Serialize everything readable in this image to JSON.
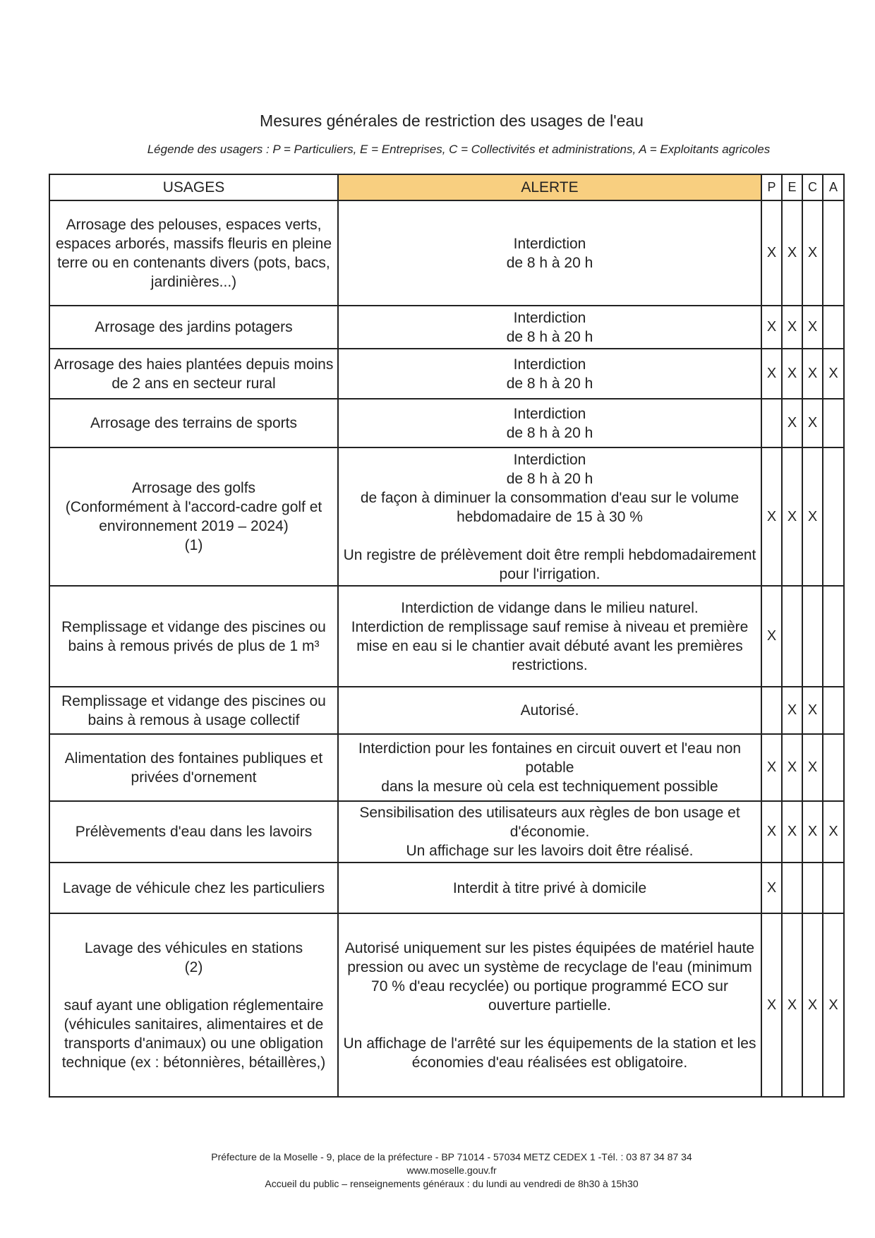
{
  "title": "Mesures générales de restriction des usages de l'eau",
  "legend": "Légende des usagers : P = Particuliers, E = Entreprises, C = Collectivités et administrations, A = Exploitants agricoles",
  "table": {
    "headers": [
      "USAGES",
      "ALERTE",
      "P",
      "E",
      "C",
      "A"
    ],
    "rows": [
      {
        "usage": "Arrosage des pelouses, espaces verts, espaces arborés, massifs fleuris en pleine terre ou en contenants divers (pots, bacs, jardinières...)",
        "alerte": "Interdiction\nde 8 h à 20 h",
        "marks": [
          "X",
          "X",
          "X",
          ""
        ],
        "h": 0
      },
      {
        "usage": "Arrosage des jardins potagers",
        "alerte": "Interdiction\nde 8 h à 20 h",
        "marks": [
          "X",
          "X",
          "X",
          ""
        ]
      },
      {
        "usage": "Arrosage des haies plantées depuis moins de 2 ans en secteur rural",
        "alerte": "Interdiction\nde 8 h à 20 h",
        "marks": [
          "X",
          "X",
          "X",
          "X"
        ]
      },
      {
        "usage": "Arrosage des terrains de sports",
        "alerte": "Interdiction\nde 8 h à 20 h",
        "marks": [
          "",
          "X",
          "X",
          ""
        ]
      },
      {
        "usage": "Arrosage des golfs\n(Conformément à l'accord-cadre golf et environnement 2019 – 2024)\n(1)",
        "alerte": "Interdiction\nde 8 h à 20 h\nde façon à diminuer la consommation d'eau sur le volume hebdomadaire de 15 à 30 %\n\nUn registre de prélèvement doit être rempli hebdomadairement pour l'irrigation.",
        "marks": [
          "X",
          "X",
          "X",
          ""
        ]
      },
      {
        "usage": "Remplissage et vidange des piscines ou bains à remous privés de plus de 1 m³",
        "alerte": "Interdiction de vidange dans le milieu naturel.\nInterdiction de remplissage sauf remise à niveau et première mise en eau si le chantier avait débuté avant les premières restrictions.",
        "marks": [
          "X",
          "",
          "",
          ""
        ]
      },
      {
        "usage": "Remplissage et vidange des piscines ou bains à remous à usage collectif",
        "alerte": "Autorisé.",
        "marks": [
          "",
          "X",
          "X",
          ""
        ]
      },
      {
        "usage": "Alimentation des fontaines publiques et privées d'ornement",
        "alerte": "Interdiction pour les fontaines en circuit ouvert et l'eau non potable\ndans la mesure où cela est techniquement possible",
        "marks": [
          "X",
          "X",
          "X",
          ""
        ]
      },
      {
        "usage": "Prélèvements d'eau dans les lavoirs",
        "alerte": "Sensibilisation des utilisateurs aux règles de bon usage et d'économie.\nUn affichage sur les lavoirs doit être réalisé.",
        "marks": [
          "X",
          "X",
          "X",
          "X"
        ]
      },
      {
        "usage": "Lavage de véhicule chez les particuliers",
        "alerte": "Interdit à titre privé à domicile",
        "marks": [
          "X",
          "",
          "",
          ""
        ]
      },
      {
        "usage": "Lavage des véhicules en stations\n(2)\n\nsauf ayant une obligation réglementaire (véhicules sanitaires, alimentaires et de transports d'animaux) ou une obligation technique (ex : bétonnières, bétaillères,)",
        "alerte": "Autorisé uniquement sur les pistes équipées de matériel haute pression ou avec un système de recyclage de l'eau (minimum 70 % d'eau recyclée) ou portique programmé ECO sur ouverture partielle.\n\nUn affichage de l'arrêté sur les équipements de la station et les économies d'eau réalisées est obligatoire.",
        "marks": [
          "X",
          "X",
          "X",
          "X"
        ]
      }
    ]
  },
  "footer": {
    "address": "Préfecture de la Moselle - 9, place de la préfecture - BP 71014 - 57034 METZ CEDEX 1 -Tél. : 03 87 34 87 34",
    "website": "www.moselle.gouv.fr",
    "hours": "Accueil du public – renseignements généraux : du lundi au vendredi de 8h30 à 15h30"
  }
}
